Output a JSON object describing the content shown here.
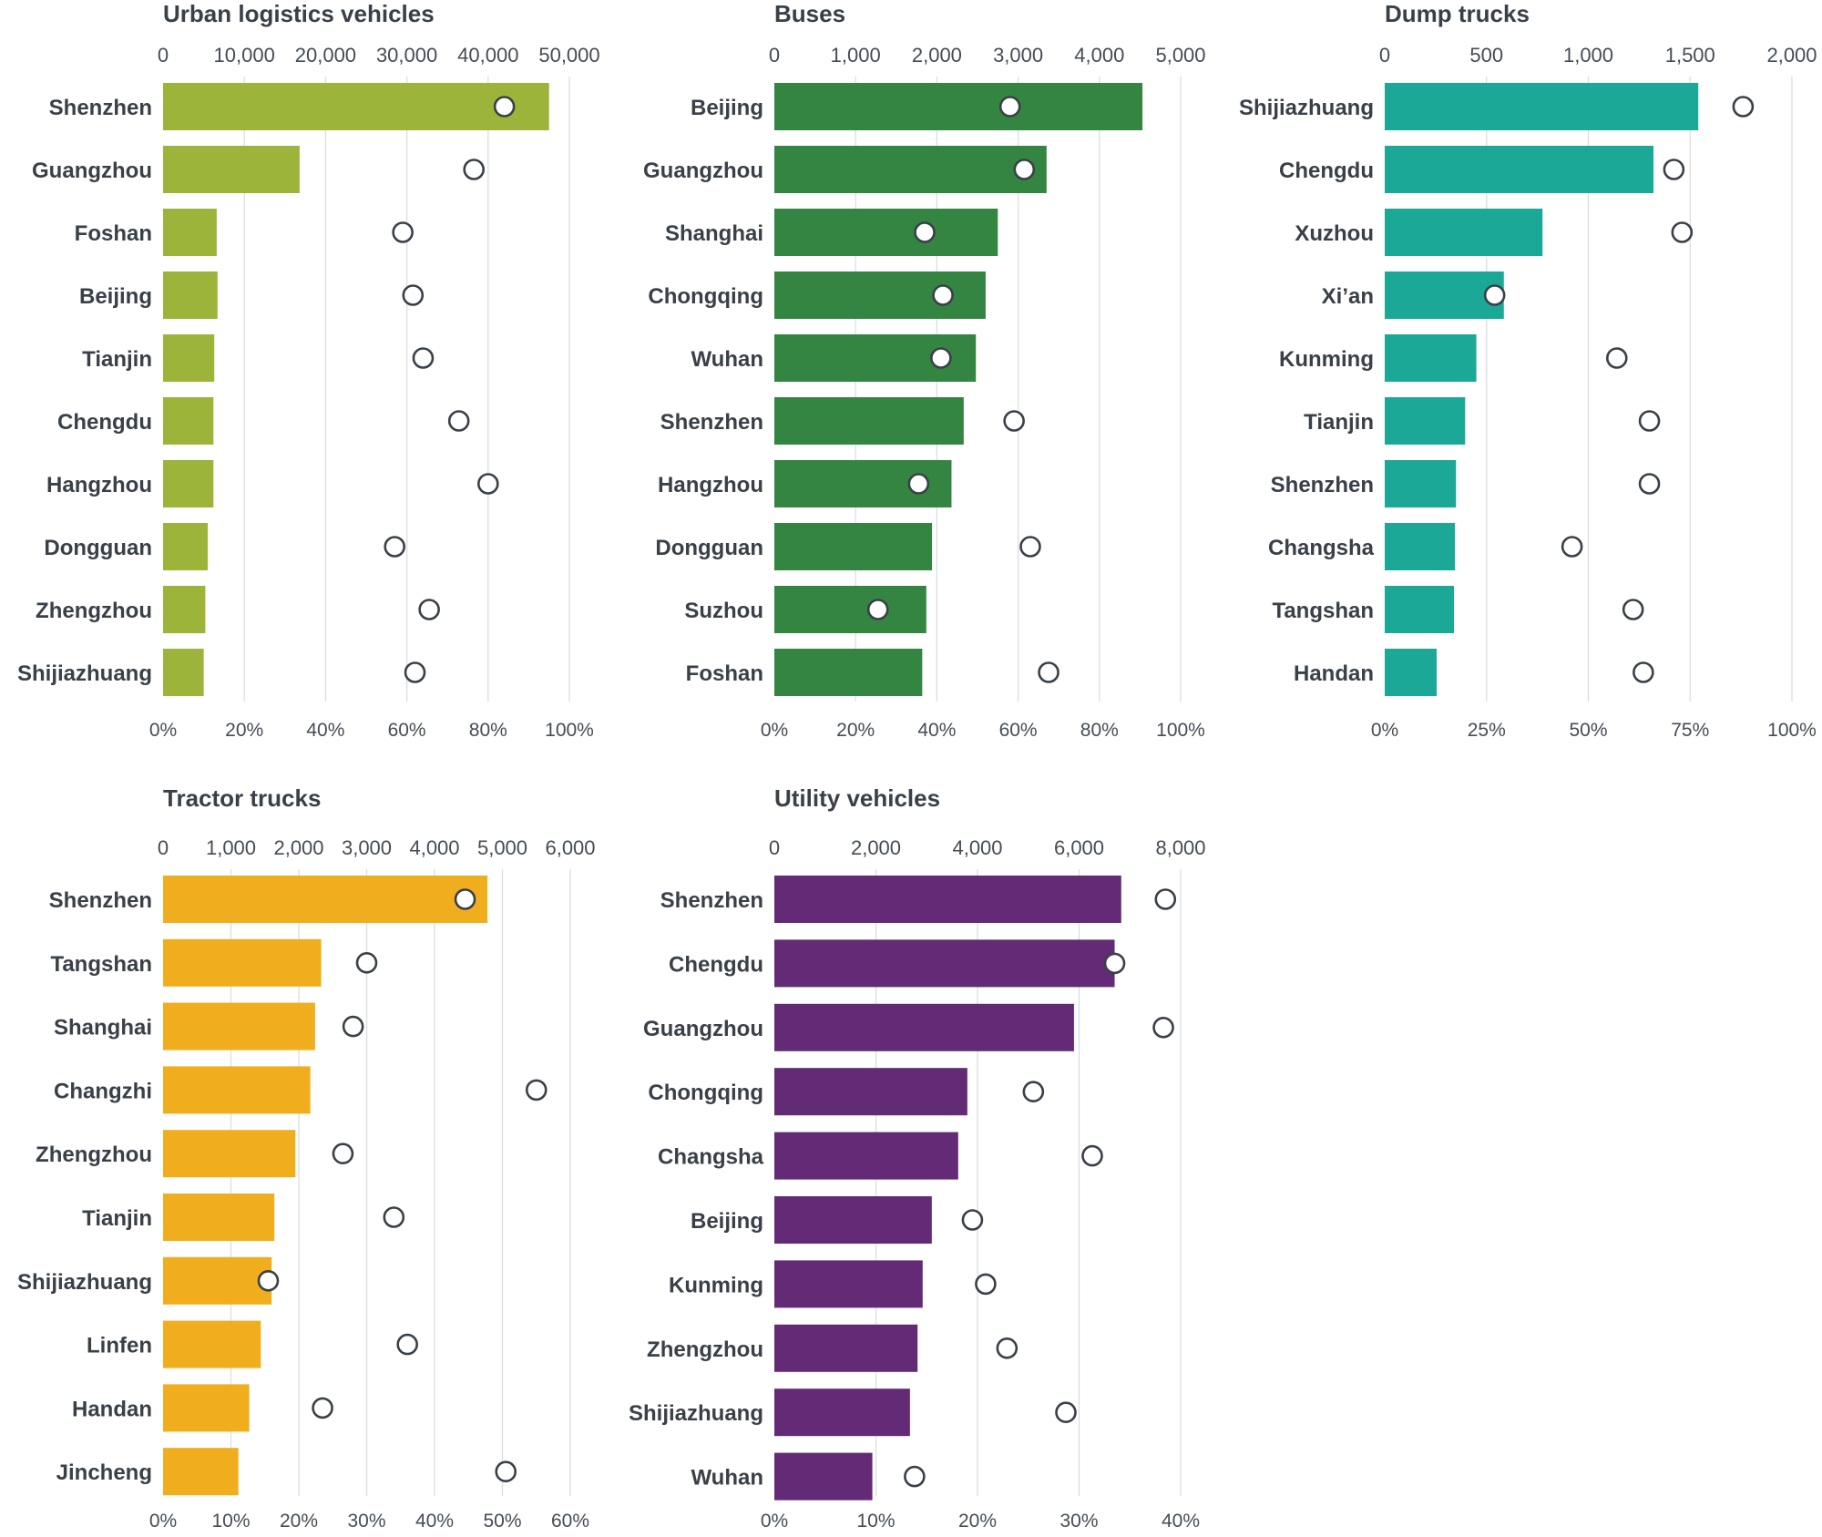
{
  "chart_data": [
    {
      "type": "bar",
      "title": "Urban logistics vehicles",
      "color": "#9cb43a",
      "top_axis": {
        "ticks": [
          0,
          10000,
          20000,
          30000,
          40000,
          50000
        ],
        "labels": [
          "0",
          "10,000",
          "20,000",
          "30,000",
          "40,000",
          "50,000"
        ]
      },
      "bottom_axis": {
        "ticks": [
          0,
          20,
          40,
          60,
          80,
          100
        ],
        "labels": [
          "0%",
          "20%",
          "40%",
          "60%",
          "80%",
          "100%"
        ]
      },
      "categories": [
        "Shenzhen",
        "Guangzhou",
        "Foshan",
        "Beijing",
        "Tianjin",
        "Chengdu",
        "Hangzhou",
        "Dongguan",
        "Zhengzhou",
        "Shijiazhuang"
      ],
      "series": [
        {
          "values": [
            47500,
            16800,
            6600,
            6700,
            6300,
            6200,
            6200,
            5500,
            5200,
            5000
          ]
        },
        {
          "values": [
            84,
            76.5,
            59,
            61.5,
            64,
            72.8,
            80,
            57,
            65.5,
            62
          ]
        }
      ],
      "grid": true
    },
    {
      "type": "bar",
      "title": "Buses",
      "color": "#338541",
      "top_axis": {
        "ticks": [
          0,
          1000,
          2000,
          3000,
          4000,
          5000
        ],
        "labels": [
          "0",
          "1,000",
          "2,000",
          "3,000",
          "4,000",
          "5,000"
        ]
      },
      "bottom_axis": {
        "ticks": [
          0,
          20,
          40,
          60,
          80,
          100
        ],
        "labels": [
          "0%",
          "20%",
          "40%",
          "60%",
          "80%",
          "100%"
        ]
      },
      "categories": [
        "Beijing",
        "Guangzhou",
        "Shanghai",
        "Chongqing",
        "Wuhan",
        "Shenzhen",
        "Hangzhou",
        "Dongguan",
        "Suzhou",
        "Foshan"
      ],
      "series": [
        {
          "values": [
            4530,
            3350,
            2750,
            2600,
            2480,
            2330,
            2180,
            1940,
            1870,
            1820
          ]
        },
        {
          "values": [
            58,
            61.5,
            37,
            41.5,
            41,
            59,
            35.5,
            63,
            25.5,
            67.5
          ]
        }
      ],
      "grid": true
    },
    {
      "type": "bar",
      "title": "Dump trucks",
      "color": "#1ba896",
      "top_axis": {
        "ticks": [
          0,
          500,
          1000,
          1500,
          2000
        ],
        "labels": [
          "0",
          "500",
          "1,000",
          "1,500",
          "2,000"
        ]
      },
      "bottom_axis": {
        "ticks": [
          0,
          25,
          50,
          75,
          100
        ],
        "labels": [
          "0%",
          "25%",
          "50%",
          "75%",
          "100%"
        ]
      },
      "categories": [
        "Shijiazhuang",
        "Chengdu",
        "Xuzhou",
        "Xi’an",
        "Kunming",
        "Tianjin",
        "Shenzhen",
        "Changsha",
        "Tangshan",
        "Handan"
      ],
      "series": [
        {
          "values": [
            1540,
            1320,
            775,
            585,
            450,
            395,
            350,
            345,
            340,
            255
          ]
        },
        {
          "values": [
            88,
            71,
            73,
            27,
            57,
            65,
            65,
            46,
            61,
            63.5
          ]
        }
      ],
      "grid": true
    },
    {
      "type": "bar",
      "title": "Tractor trucks",
      "color": "#f0ae1e",
      "top_axis": {
        "ticks": [
          0,
          1000,
          2000,
          3000,
          4000,
          5000,
          6000
        ],
        "labels": [
          "0",
          "1,000",
          "2,000",
          "3,000",
          "4,000",
          "5,000",
          "6,000"
        ]
      },
      "bottom_axis": {
        "ticks": [
          0,
          10,
          20,
          30,
          40,
          50,
          60
        ],
        "labels": [
          "0%",
          "10%",
          "20%",
          "30%",
          "40%",
          "50%",
          "60%"
        ]
      },
      "categories": [
        "Shenzhen",
        "Tangshan",
        "Shanghai",
        "Changzhi",
        "Zhengzhou",
        "Tianjin",
        "Shijiazhuang",
        "Linfen",
        "Handan",
        "Jincheng"
      ],
      "series": [
        {
          "values": [
            4780,
            2330,
            2240,
            2170,
            1950,
            1640,
            1600,
            1440,
            1270,
            1110
          ]
        },
        {
          "values": [
            44.5,
            30,
            28,
            55,
            26.5,
            34,
            15.5,
            36,
            23.5,
            50.5
          ]
        }
      ],
      "grid": true
    },
    {
      "type": "bar",
      "title": "Utility vehicles",
      "color": "#632a76",
      "top_axis": {
        "ticks": [
          0,
          2000,
          4000,
          6000,
          8000
        ],
        "labels": [
          "0",
          "2,000",
          "4,000",
          "6,000",
          "8,000"
        ]
      },
      "bottom_axis": {
        "ticks": [
          0,
          10,
          20,
          30,
          40
        ],
        "labels": [
          "0%",
          "10%",
          "20%",
          "30%",
          "40%"
        ]
      },
      "categories": [
        "Shenzhen",
        "Chengdu",
        "Guangzhou",
        "Chongqing",
        "Changsha",
        "Beijing",
        "Kunming",
        "Zhengzhou",
        "Shijiazhuang",
        "Wuhan"
      ],
      "series": [
        {
          "values": [
            6830,
            6700,
            5900,
            3800,
            3620,
            3100,
            2920,
            2820,
            2670,
            1930
          ]
        },
        {
          "values": [
            38.5,
            33.5,
            38.3,
            25.5,
            31.3,
            19.5,
            20.8,
            22.9,
            28.7,
            13.8
          ]
        }
      ],
      "grid": true
    }
  ]
}
